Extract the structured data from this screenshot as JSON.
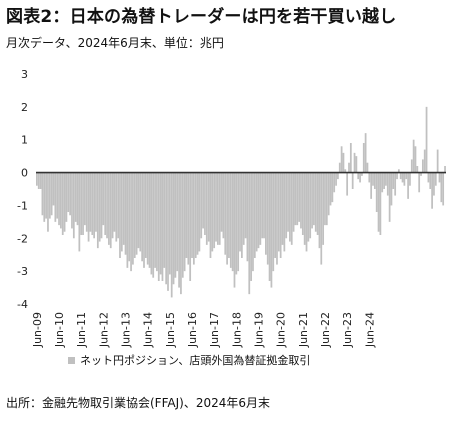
{
  "header": {
    "title": "図表2：日本の為替トレーダーは円を若干買い越し",
    "subtitle": "月次データ、2024年6月末、単位：兆円"
  },
  "footer": {
    "source": "出所：金融先物取引業協会(FFAJ)、2024年6月末"
  },
  "colors": {
    "bar": "#c0c0c0",
    "zero_line": "#333333"
  },
  "chart_data": {
    "type": "bar",
    "title": "",
    "xlabel": "",
    "ylabel": "",
    "ylim": [
      -4,
      3
    ],
    "yticks": [
      3,
      2,
      1,
      0,
      -1,
      -2,
      -3,
      -4
    ],
    "grid": false,
    "legend_position": "bottom",
    "x_tick_labels": [
      "Jun-09",
      "Jun-10",
      "Jun-11",
      "Jun-12",
      "Jun-13",
      "Jun-14",
      "Jun-15",
      "Jun-16",
      "Jun-17",
      "Jun-18",
      "Jun-19",
      "Jun-20",
      "Jun-21",
      "Jun-22",
      "Jun-23",
      "Jun-24"
    ],
    "period_start": "Jun-09",
    "period_end": "Jun-24",
    "frequency": "monthly",
    "series": [
      {
        "name": "ネット円ポジション、店頭外国為替証拠金取引",
        "values": [
          -0.4,
          -0.5,
          -0.5,
          -1.3,
          -1.5,
          -1.4,
          -1.8,
          -1.4,
          -1.3,
          -1.0,
          -1.5,
          -1.4,
          -1.6,
          -1.7,
          -1.9,
          -1.8,
          -1.5,
          -1.2,
          -1.3,
          -1.7,
          -2.0,
          -1.5,
          -1.6,
          -2.4,
          -1.9,
          -1.9,
          -1.6,
          -1.8,
          -2.1,
          -1.8,
          -1.9,
          -2.0,
          -1.8,
          -2.3,
          -2.1,
          -2.0,
          -1.6,
          -1.9,
          -2.0,
          -2.2,
          -2.3,
          -2.0,
          -1.8,
          -2.1,
          -2.0,
          -2.6,
          -2.4,
          -2.2,
          -2.5,
          -2.9,
          -2.7,
          -3.0,
          -2.8,
          -2.6,
          -2.5,
          -2.3,
          -2.4,
          -2.7,
          -2.9,
          -2.6,
          -2.8,
          -2.9,
          -3.1,
          -3.2,
          -2.9,
          -3.0,
          -3.3,
          -3.1,
          -3.3,
          -2.9,
          -3.4,
          -3.6,
          -3.1,
          -3.8,
          -3.4,
          -3.2,
          -3.0,
          -3.5,
          -3.7,
          -3.2,
          -3.0,
          -2.6,
          -2.8,
          -3.3,
          -2.6,
          -2.8,
          -2.6,
          -2.5,
          -2.4,
          -2.0,
          -1.7,
          -1.9,
          -2.2,
          -2.1,
          -2.6,
          -2.4,
          -2.3,
          -2.1,
          -2.2,
          -2.2,
          -1.8,
          -2.0,
          -2.5,
          -2.8,
          -2.6,
          -2.9,
          -3.0,
          -3.5,
          -3.1,
          -3.0,
          -2.4,
          -2.6,
          -2.2,
          -2.0,
          -2.7,
          -3.7,
          -3.3,
          -3.0,
          -2.6,
          -2.4,
          -2.3,
          -2.2,
          -2.0,
          -2.0,
          -2.5,
          -2.8,
          -3.3,
          -3.5,
          -3.0,
          -2.6,
          -2.8,
          -2.4,
          -2.6,
          -2.2,
          -2.4,
          -2.0,
          -1.8,
          -2.1,
          -2.2,
          -1.8,
          -1.6,
          -1.6,
          -1.5,
          -1.7,
          -1.9,
          -2.2,
          -2.4,
          -2.1,
          -2.0,
          -1.7,
          -1.6,
          -1.8,
          -1.9,
          -2.3,
          -2.8,
          -2.2,
          -1.6,
          -1.6,
          -1.3,
          -1.0,
          -0.9,
          -0.6,
          -0.4,
          -0.2,
          0.3,
          0.8,
          0.6,
          0.1,
          -0.7,
          0.3,
          0.9,
          -0.5,
          0.6,
          0.5,
          -0.2,
          -0.3,
          -0.1,
          0.9,
          1.2,
          0.3,
          -0.3,
          -0.8,
          -0.4,
          -0.5,
          -1.2,
          -1.8,
          -1.9,
          -0.6,
          -0.5,
          -0.4,
          -0.7,
          -1.5,
          -1.0,
          -0.5,
          -0.7,
          -0.2,
          0.1,
          -0.2,
          -0.3,
          -0.4,
          -0.2,
          -0.8,
          -0.4,
          0.4,
          1.0,
          0.8,
          0.2,
          -0.6,
          -0.1,
          0.4,
          0.7,
          2.0,
          -0.3,
          -0.5,
          -1.1,
          -0.7,
          -0.4,
          0.7,
          -0.3,
          -0.9,
          -1.0,
          0.2
        ]
      }
    ]
  }
}
